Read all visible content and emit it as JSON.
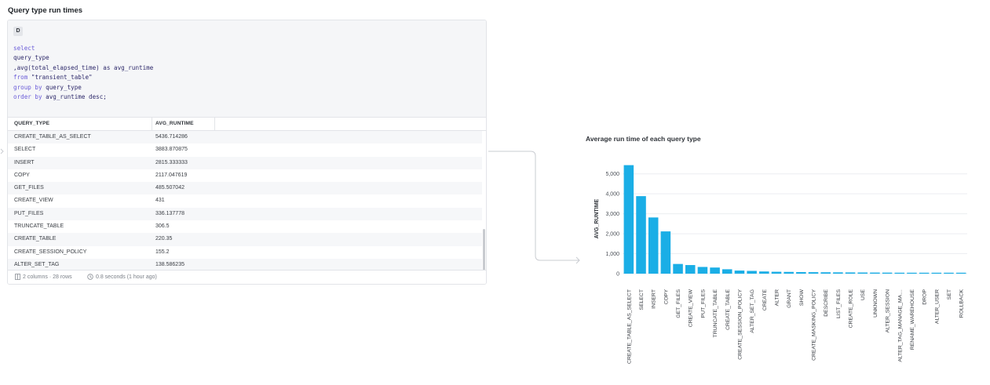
{
  "section": {
    "title": "Query type run times"
  },
  "query": {
    "engine_badge": "D",
    "lines": [
      {
        "kw": "select",
        "rest": ""
      },
      {
        "kw": "",
        "rest": "query_type"
      },
      {
        "kw": "",
        "rest": ",avg(total_elapsed_time) as avg_runtime"
      },
      {
        "kw": "from",
        "rest": " \"transient_table\""
      },
      {
        "kw": "group by",
        "rest": " query_type"
      },
      {
        "kw": "order by",
        "rest": " avg_runtime desc;"
      }
    ]
  },
  "table": {
    "columns": [
      "QUERY_TYPE",
      "AVG_RUNTIME"
    ],
    "rows": [
      [
        "CREATE_TABLE_AS_SELECT",
        "5436.714286"
      ],
      [
        "SELECT",
        "3883.870875"
      ],
      [
        "INSERT",
        "2815.333333"
      ],
      [
        "COPY",
        "2117.047619"
      ],
      [
        "GET_FILES",
        "485.507042"
      ],
      [
        "CREATE_VIEW",
        "431"
      ],
      [
        "PUT_FILES",
        "336.137778"
      ],
      [
        "TRUNCATE_TABLE",
        "306.5"
      ],
      [
        "CREATE_TABLE",
        "220.35"
      ],
      [
        "CREATE_SESSION_POLICY",
        "155.2"
      ],
      [
        "ALTER_SET_TAG",
        "138.586235"
      ]
    ],
    "footer": {
      "size": "2 columns · 28 rows",
      "timing": "0.8 seconds (1 hour ago)"
    }
  },
  "chart_data": {
    "type": "bar",
    "title": "Average run time of each query type",
    "xlabel": "",
    "ylabel": "AVG_RUNTIME",
    "ylim": [
      0,
      5500
    ],
    "yticks": [
      0,
      1000,
      2000,
      3000,
      4000,
      5000
    ],
    "ytick_labels": [
      "0",
      "1,000",
      "2,000",
      "3,000",
      "4,000",
      "5,000"
    ],
    "grid": true,
    "bar_color": "#1aaee6",
    "categories": [
      "CREATE_TABLE_AS_SELECT",
      "SELECT",
      "INSERT",
      "COPY",
      "GET_FILES",
      "CREATE_VIEW",
      "PUT_FILES",
      "TRUNCATE_TABLE",
      "CREATE_TABLE",
      "CREATE_SESSION_POLICY",
      "ALTER_SET_TAG",
      "CREATE",
      "ALTER",
      "GRANT",
      "SHOW",
      "CREATE_MASKING_POLICY",
      "DESCRIBE",
      "LIST_FILES",
      "CREATE_ROLE",
      "USE",
      "UNKNOWN",
      "ALTER_SESSION",
      "ALTER_TAG_MANAGE_MA…",
      "RENAME_WAREHOUSE",
      "DROP",
      "ALTER_USER",
      "SET",
      "ROLLBACK"
    ],
    "values": [
      5436.714286,
      3883.870875,
      2815.333333,
      2117.047619,
      485.507042,
      431,
      336.137778,
      306.5,
      220.35,
      155.2,
      138.586235,
      110,
      95,
      88,
      80,
      75,
      70,
      66,
      62,
      58,
      55,
      52,
      48,
      45,
      42,
      38,
      35,
      30
    ]
  }
}
